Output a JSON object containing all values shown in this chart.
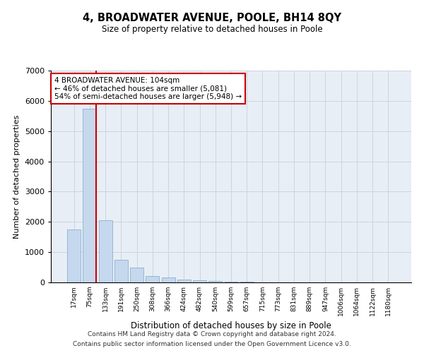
{
  "title": "4, BROADWATER AVENUE, POOLE, BH14 8QY",
  "subtitle": "Size of property relative to detached houses in Poole",
  "xlabel": "Distribution of detached houses by size in Poole",
  "ylabel": "Number of detached properties",
  "categories": [
    "17sqm",
    "75sqm",
    "133sqm",
    "191sqm",
    "250sqm",
    "308sqm",
    "366sqm",
    "424sqm",
    "482sqm",
    "540sqm",
    "599sqm",
    "657sqm",
    "715sqm",
    "773sqm",
    "831sqm",
    "889sqm",
    "947sqm",
    "1006sqm",
    "1064sqm",
    "1122sqm",
    "1180sqm"
  ],
  "values": [
    1750,
    5750,
    2050,
    750,
    480,
    220,
    170,
    90,
    60,
    40,
    35,
    30,
    0,
    0,
    0,
    0,
    0,
    0,
    0,
    0,
    0
  ],
  "bar_color": "#c5d8ed",
  "bar_edge_color": "#7ba8cc",
  "vline_color": "#cc0000",
  "vline_pos": 1.42,
  "annotation_box_text": "4 BROADWATER AVENUE: 104sqm\n← 46% of detached houses are smaller (5,081)\n54% of semi-detached houses are larger (5,948) →",
  "annotation_box_color": "#cc0000",
  "ylim": [
    0,
    7000
  ],
  "yticks": [
    0,
    1000,
    2000,
    3000,
    4000,
    5000,
    6000,
    7000
  ],
  "grid_color": "#ccd5e0",
  "background_color": "#e8eef5",
  "footer_line1": "Contains HM Land Registry data © Crown copyright and database right 2024.",
  "footer_line2": "Contains public sector information licensed under the Open Government Licence v3.0."
}
